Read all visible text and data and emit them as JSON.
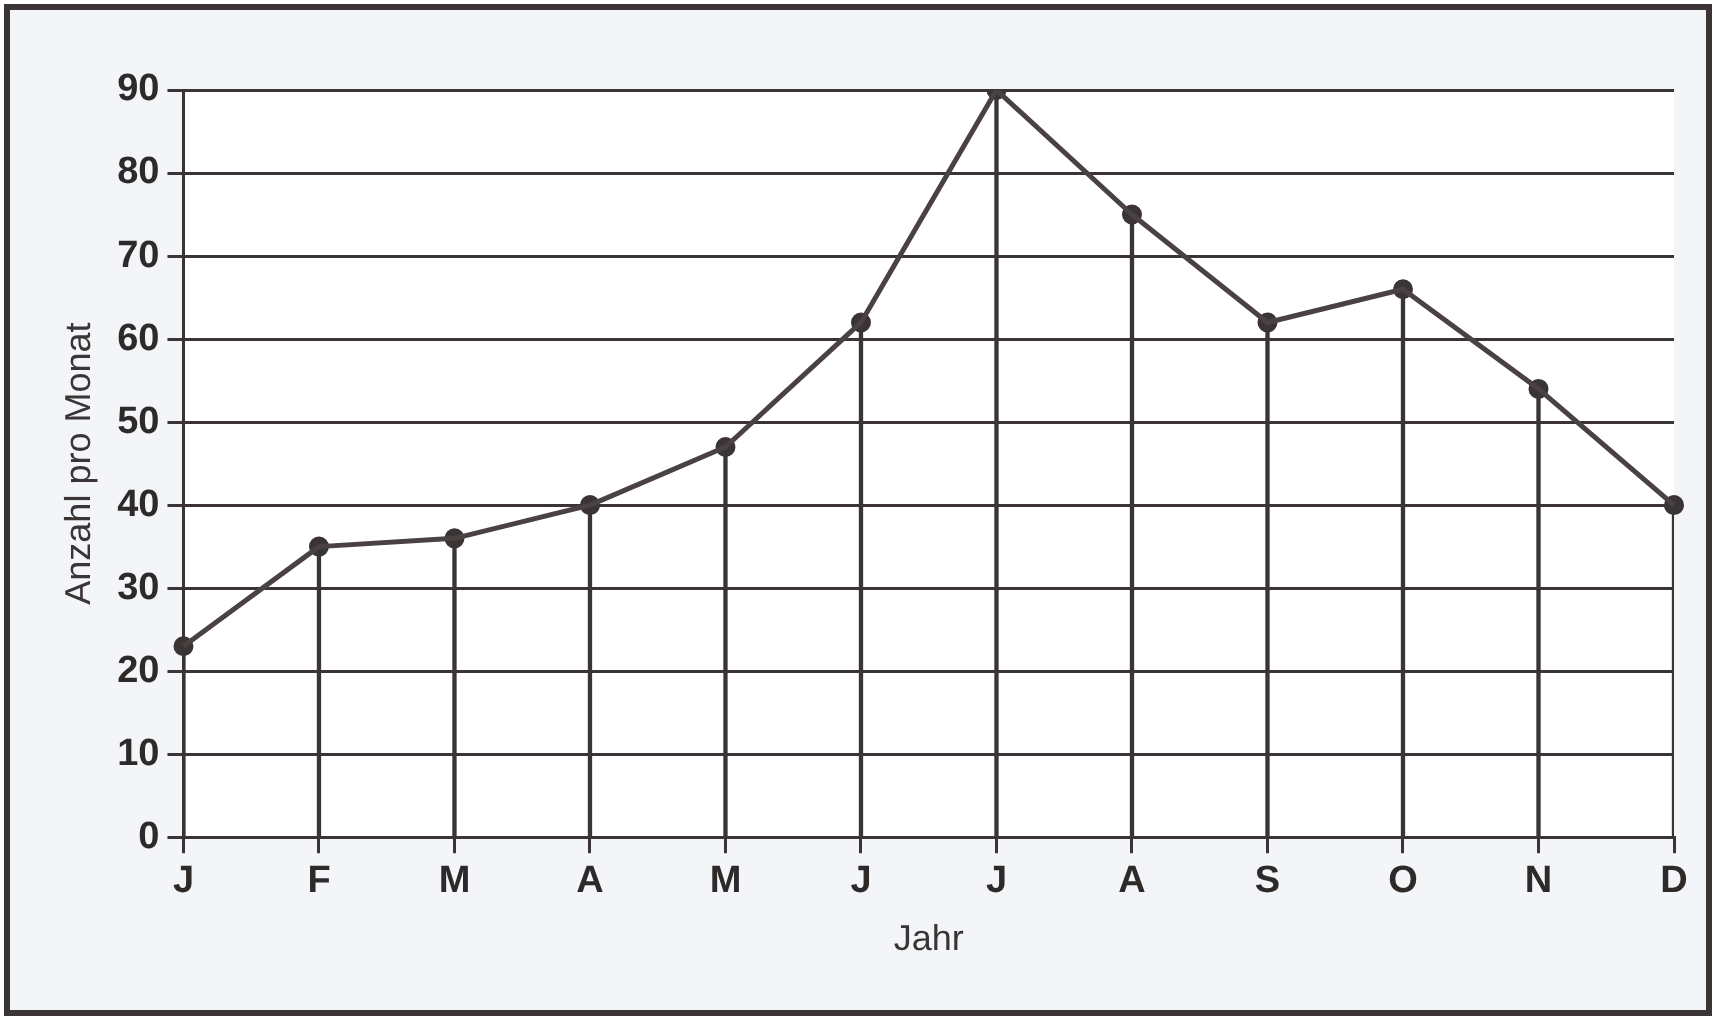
{
  "chart_data": {
    "type": "line",
    "xlabel": "Jahr",
    "ylabel": "Anzahl pro Monat",
    "categories": [
      "J",
      "F",
      "M",
      "A",
      "M",
      "J",
      "J",
      "A",
      "S",
      "O",
      "N",
      "D"
    ],
    "series": [
      {
        "color": "#4a4242",
        "values": [
          23,
          35,
          36,
          40,
          47,
          62,
          90,
          75,
          62,
          66,
          54,
          40
        ]
      },
      {
        "type": "lollipop",
        "color": "#3a3434",
        "values": [
          23,
          35,
          36,
          40,
          47,
          62,
          90,
          75,
          62,
          66,
          54,
          40
        ]
      }
    ],
    "ylim": [
      0,
      90
    ],
    "yticks": [
      0,
      10,
      20,
      30,
      40,
      50,
      60,
      70,
      80,
      90
    ],
    "grid": "y",
    "legend": false,
    "line_style": "solid"
  }
}
